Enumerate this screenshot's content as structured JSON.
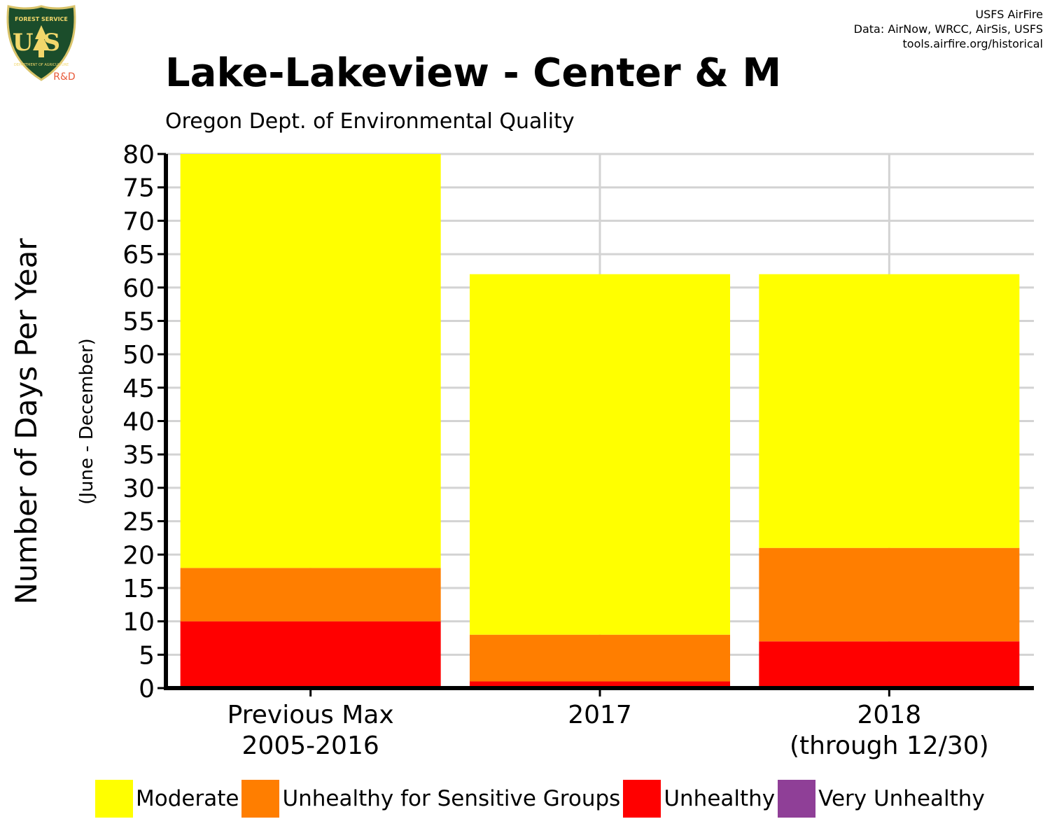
{
  "header": {
    "title": "Lake-Lakeview - Center & M",
    "subtitle": "Oregon Dept. of Environmental Quality",
    "credits": [
      "USFS AirFire",
      "Data: AirNow, WRCC, AirSis, USFS",
      "tools.airfire.org/historical"
    ]
  },
  "logo": {
    "agency_text": "FOREST SERVICE",
    "monogram": "US",
    "dept_text": "DEPARTMENT OF AGRICULTURE",
    "suffix": "R&D",
    "colors": {
      "shield": "#1b4d2b",
      "border": "#d9c36a",
      "text": "#f2d76b",
      "suffix": "#e85a3a"
    }
  },
  "chart_data": {
    "type": "bar",
    "stacked": true,
    "categories": [
      [
        "Previous Max",
        "2005-2016"
      ],
      [
        "2017"
      ],
      [
        "2018",
        "(through 12/30)"
      ]
    ],
    "series": [
      {
        "name": "Moderate",
        "values": [
          62,
          54,
          41
        ],
        "color": "#ffff00"
      },
      {
        "name": "Unhealthy for Sensitive Groups",
        "values": [
          8,
          7,
          14
        ],
        "color": "#ff7e00"
      },
      {
        "name": "Unhealthy",
        "values": [
          10,
          1,
          7
        ],
        "color": "#ff0000"
      },
      {
        "name": "Very Unhealthy",
        "values": [
          0,
          0,
          0
        ],
        "color": "#8f3f97"
      }
    ],
    "stack_order_bottom_to_top": [
      "Very Unhealthy",
      "Unhealthy",
      "Unhealthy for Sensitive Groups",
      "Moderate"
    ],
    "ylabel": "Number of Days Per Year",
    "ylabel_note": "(June - December)",
    "ylim": [
      0,
      80
    ],
    "yticks": [
      0,
      5,
      10,
      15,
      20,
      25,
      30,
      35,
      40,
      45,
      50,
      55,
      60,
      65,
      70,
      75,
      80
    ],
    "grid": true,
    "grid_color": "#d3d3d3",
    "legend_position": "bottom"
  }
}
